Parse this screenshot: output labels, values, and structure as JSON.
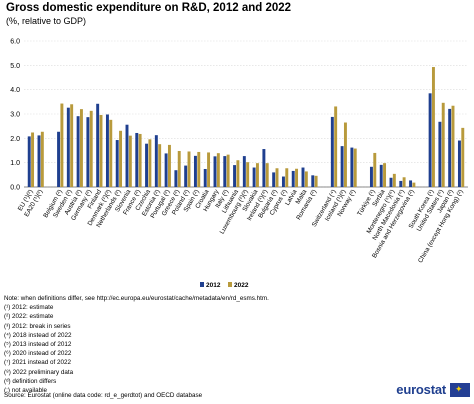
{
  "title": "Gross domestic expenditure on R&D, 2012 and 2022",
  "subtitle": "(%, relative to GDP)",
  "chart_data": {
    "type": "bar",
    "ylim": [
      0,
      6
    ],
    "yticks": [
      "0.0",
      "1.0",
      "2.0",
      "3.0",
      "4.0",
      "5.0",
      "6.0"
    ],
    "grid": true,
    "legend_placement": "bottom-center",
    "categories": [
      "EU (¹)(²)",
      "EA20 (¹)(²)",
      "Belgium (²)",
      "Sweden (²)",
      "Austria (²)",
      "Germany (²)",
      "Finland",
      "Denmark (²)(³)",
      "Netherlands (²)",
      "Slovenia",
      "France (²)",
      "Czechia",
      "Estonia (²)",
      "Portugal (²)",
      "Greece (²)",
      "Poland (²)",
      "Spain (²)",
      "Croatia",
      "Hungary",
      "Italy (²)",
      "Lithuania",
      "Luxembourg (²)(³)",
      "Slovakia",
      "Ireland (¹)(⁸)",
      "Bulgaria (²)",
      "Cyprus (²)",
      "Latvia",
      "Malta",
      "Romania (²)",
      "Switzerland (⁴)",
      "Iceland (¹)(²)",
      "Norway (²)",
      "Türkiye (¹)",
      "Serbia",
      "Montenegro (⁵)(⁶)",
      "North Macedonia (⁶)",
      "Bosnia and Herzegovina (²)",
      "South Korea (¹)",
      "United States (⁶)",
      "Japan (²)",
      "China (except Hong Kong) (²)"
    ],
    "gap_after": [
      1,
      28,
      31,
      36
    ],
    "series": [
      {
        "name": "2012",
        "color": "#1f3f8f",
        "values": [
          2.08,
          2.12,
          2.27,
          3.26,
          2.91,
          2.87,
          3.42,
          2.98,
          1.93,
          2.56,
          2.22,
          1.78,
          2.13,
          1.38,
          0.69,
          0.88,
          1.28,
          0.74,
          1.26,
          1.27,
          0.9,
          1.27,
          0.8,
          1.56,
          0.6,
          0.43,
          0.66,
          0.8,
          0.48,
          2.88,
          1.68,
          1.62,
          0.83,
          0.91,
          0.38,
          0.25,
          0.27,
          3.85,
          2.68,
          3.21,
          1.91
        ]
      },
      {
        "name": "2022",
        "color": "#b89a3c",
        "values": [
          2.24,
          2.27,
          3.43,
          3.4,
          3.2,
          3.13,
          2.96,
          2.76,
          2.31,
          2.11,
          2.18,
          1.96,
          1.76,
          1.73,
          1.48,
          1.46,
          1.44,
          1.42,
          1.39,
          1.33,
          1.1,
          1.02,
          0.98,
          0.98,
          0.77,
          0.77,
          0.75,
          0.64,
          0.46,
          3.31,
          2.65,
          1.58,
          1.4,
          0.98,
          0.54,
          0.4,
          0.18,
          4.93,
          3.46,
          3.34,
          2.43
        ]
      }
    ]
  },
  "notes": [
    "Note: when definitions differ, see http://ec.europa.eu/eurostat/cache/metadata/en/rd_esms.htm.",
    "(¹) 2012: estimate",
    "(²) 2022: estimate",
    "(³) 2012: break in series",
    "(⁴) 2018 instead of 2022",
    "(⁵) 2013 instead of 2012",
    "(⁶) 2020 instead of 2022",
    "(⁷) 2021 instead of 2022",
    "(⁸) 2022 preliminary data",
    "(ᵈ) definition differs",
    "(:) not available"
  ],
  "source": "Source: Eurostat (online data code: rd_e_gerdtot) and OECD database",
  "brand": "eurostat"
}
